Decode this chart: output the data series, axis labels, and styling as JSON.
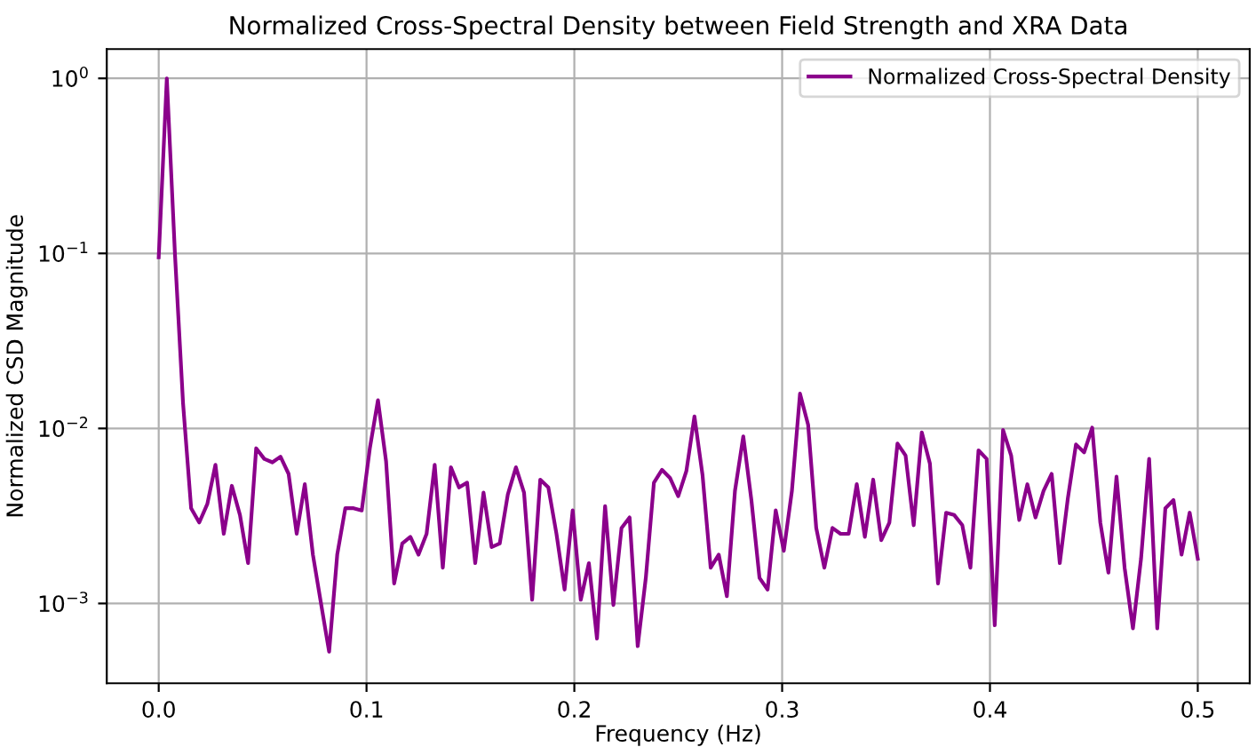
{
  "chart_data": {
    "type": "line",
    "title": "Normalized Cross-Spectral Density between Field Strength and XRA Data",
    "xlabel": "Frequency (Hz)",
    "ylabel": "Normalized CSD Magnitude",
    "x": [
      0.0,
      0.0039,
      0.0078,
      0.0117,
      0.0156,
      0.0195,
      0.0234,
      0.0273,
      0.0313,
      0.0352,
      0.0391,
      0.043,
      0.0469,
      0.0508,
      0.0547,
      0.0586,
      0.0625,
      0.0664,
      0.0703,
      0.0742,
      0.0781,
      0.082,
      0.0859,
      0.0898,
      0.0938,
      0.0977,
      0.1016,
      0.1055,
      0.1094,
      0.1133,
      0.1172,
      0.1211,
      0.125,
      0.1289,
      0.1328,
      0.1367,
      0.1406,
      0.1445,
      0.1484,
      0.1523,
      0.1563,
      0.1602,
      0.1641,
      0.168,
      0.1719,
      0.1758,
      0.1797,
      0.1836,
      0.1875,
      0.1914,
      0.1953,
      0.1992,
      0.2031,
      0.207,
      0.2109,
      0.2148,
      0.2188,
      0.2227,
      0.2266,
      0.2305,
      0.2344,
      0.2383,
      0.2422,
      0.2461,
      0.25,
      0.2539,
      0.2578,
      0.2617,
      0.2656,
      0.2695,
      0.2734,
      0.2773,
      0.2813,
      0.2852,
      0.2891,
      0.293,
      0.2969,
      0.3008,
      0.3047,
      0.3086,
      0.3125,
      0.3164,
      0.3203,
      0.3242,
      0.3281,
      0.332,
      0.3359,
      0.3398,
      0.3438,
      0.3477,
      0.3516,
      0.3555,
      0.3594,
      0.3633,
      0.3672,
      0.3711,
      0.375,
      0.3789,
      0.3828,
      0.3867,
      0.3906,
      0.3945,
      0.3984,
      0.4023,
      0.4063,
      0.4102,
      0.4141,
      0.418,
      0.4219,
      0.4258,
      0.4297,
      0.4336,
      0.4375,
      0.4414,
      0.4453,
      0.4492,
      0.4531,
      0.457,
      0.4609,
      0.4648,
      0.4688,
      0.4727,
      0.4766,
      0.4805,
      0.4844,
      0.4883,
      0.4922,
      0.4961,
      0.5
    ],
    "series": [
      {
        "name": "Normalized Cross-Spectral Density",
        "color": "#8b008b",
        "values": [
          0.095,
          1.0,
          0.1,
          0.014,
          0.0035,
          0.0029,
          0.0037,
          0.0062,
          0.0025,
          0.0047,
          0.0032,
          0.0017,
          0.0077,
          0.0067,
          0.0064,
          0.0069,
          0.0055,
          0.0025,
          0.0048,
          0.0019,
          0.001,
          0.00053,
          0.0019,
          0.0035,
          0.0035,
          0.0034,
          0.0077,
          0.0145,
          0.0065,
          0.0013,
          0.0022,
          0.0024,
          0.0019,
          0.0025,
          0.0062,
          0.0016,
          0.006,
          0.0046,
          0.0049,
          0.0017,
          0.0043,
          0.0021,
          0.0022,
          0.0042,
          0.006,
          0.0043,
          0.00105,
          0.0051,
          0.0046,
          0.0025,
          0.0012,
          0.0034,
          0.00105,
          0.0017,
          0.00063,
          0.0036,
          0.00098,
          0.0027,
          0.0031,
          0.00057,
          0.0014,
          0.0049,
          0.0058,
          0.0052,
          0.0041,
          0.0057,
          0.0117,
          0.0054,
          0.0016,
          0.0019,
          0.0011,
          0.0044,
          0.009,
          0.0039,
          0.0014,
          0.0012,
          0.0034,
          0.002,
          0.0044,
          0.0158,
          0.0105,
          0.0027,
          0.0016,
          0.0027,
          0.0025,
          0.0025,
          0.0048,
          0.0024,
          0.0051,
          0.0023,
          0.0029,
          0.0082,
          0.007,
          0.0028,
          0.0095,
          0.0063,
          0.0013,
          0.0033,
          0.0032,
          0.0028,
          0.0016,
          0.0075,
          0.0067,
          0.00075,
          0.0098,
          0.007,
          0.003,
          0.0048,
          0.0031,
          0.0044,
          0.0055,
          0.0017,
          0.004,
          0.0081,
          0.0073,
          0.0101,
          0.0029,
          0.0015,
          0.0053,
          0.0016,
          0.00072,
          0.0018,
          0.0067,
          0.00072,
          0.0035,
          0.0039,
          0.0019,
          0.0033,
          0.0018
        ]
      }
    ],
    "xlim": [
      -0.025,
      0.525
    ],
    "xticks": [
      {
        "value": 0.0,
        "label": "0.0"
      },
      {
        "value": 0.1,
        "label": "0.1"
      },
      {
        "value": 0.2,
        "label": "0.2"
      },
      {
        "value": 0.3,
        "label": "0.3"
      },
      {
        "value": 0.4,
        "label": "0.4"
      },
      {
        "value": 0.5,
        "label": "0.5"
      }
    ],
    "ylim": [
      0.00035,
      1.47
    ],
    "yticks": [
      {
        "value": 0.001,
        "label": "10$^{−3}$"
      },
      {
        "value": 0.01,
        "label": "10$^{−2}$"
      },
      {
        "value": 0.1,
        "label": "10$^{−1}$"
      },
      {
        "value": 1,
        "label": "10$^{0}$"
      }
    ],
    "log": "y",
    "grid": true,
    "legend": "top right",
    "line_style": "solid",
    "marker": "none"
  }
}
